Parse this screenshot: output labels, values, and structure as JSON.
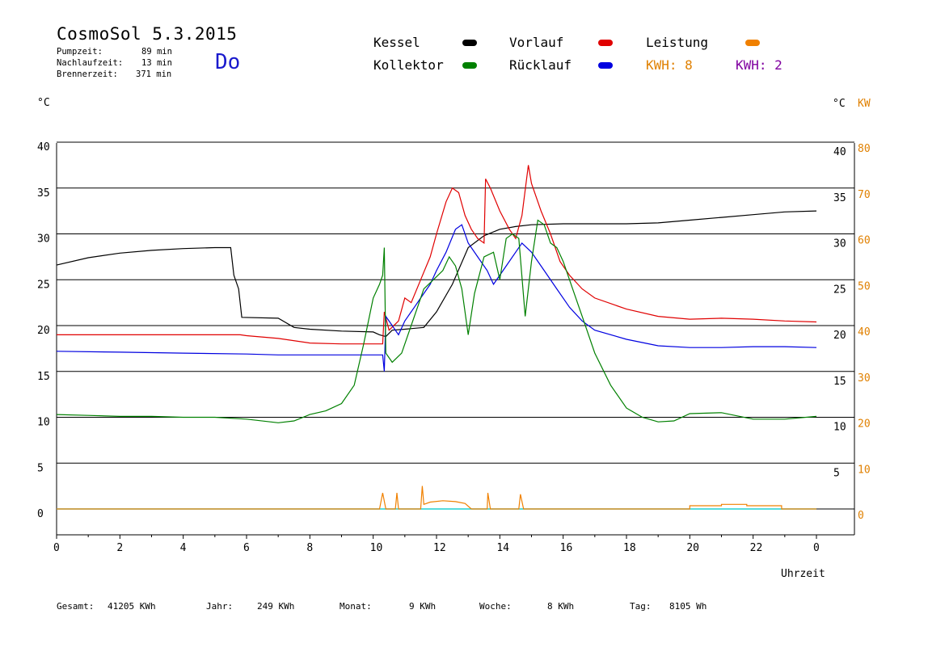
{
  "header": {
    "title": "CosmoSol 5.3.2015",
    "day": "Do",
    "stats": [
      {
        "label": "Pumpzeit:",
        "value": "89 min"
      },
      {
        "label": "Nachlaufzeit:",
        "value": "13 min"
      },
      {
        "label": "Brennerzeit:",
        "value": "371 min"
      }
    ]
  },
  "legend": {
    "items": [
      {
        "label": "Kessel",
        "color": "#000000"
      },
      {
        "label": "Vorlauf",
        "color": "#e00000"
      },
      {
        "label": "Leistung",
        "color": "#f08000"
      },
      {
        "label": "Kollektor",
        "color": "#008000"
      },
      {
        "label": "Rücklauf",
        "color": "#0000e0"
      }
    ],
    "kwh_orange": "KWH: 8",
    "kwh_purple": "KWH: 2",
    "kwh_orange_color": "#e08000",
    "kwh_purple_color": "#8000a0"
  },
  "units": {
    "left": "°C",
    "right_c": "°C",
    "right_kw": "KW"
  },
  "chart_data": {
    "type": "line",
    "xlabel": "Uhrzeit",
    "xlim": [
      0,
      24
    ],
    "x_tick_labels": [
      "0",
      "2",
      "4",
      "6",
      "8",
      "10",
      "12",
      "14",
      "16",
      "18",
      "20",
      "22",
      "0"
    ],
    "ylim_celsius": [
      -3,
      42
    ],
    "y_ticks_left": [
      "0",
      "5",
      "10",
      "15",
      "20",
      "25",
      "30",
      "35",
      "40"
    ],
    "y_ticks_right": [
      "5",
      "10",
      "15",
      "20",
      "25",
      "30",
      "35",
      "40"
    ],
    "y_ticks_kw": [
      "0",
      "10",
      "20",
      "30",
      "40",
      "50",
      "60",
      "70",
      "80"
    ],
    "grid": "horizontal",
    "series": [
      {
        "name": "Kessel",
        "color": "#000000",
        "points": [
          [
            0,
            26.6
          ],
          [
            1,
            27.4
          ],
          [
            2,
            27.9
          ],
          [
            3,
            28.2
          ],
          [
            4,
            28.4
          ],
          [
            5,
            28.5
          ],
          [
            5.5,
            28.5
          ],
          [
            5.6,
            25.5
          ],
          [
            5.75,
            24
          ],
          [
            5.85,
            20.9
          ],
          [
            7,
            20.8
          ],
          [
            7.5,
            19.8
          ],
          [
            8,
            19.6
          ],
          [
            9,
            19.4
          ],
          [
            10,
            19.3
          ],
          [
            10.2,
            19.0
          ],
          [
            10.4,
            18.8
          ],
          [
            10.6,
            19.5
          ],
          [
            11,
            19.6
          ],
          [
            11.6,
            19.8
          ],
          [
            12,
            21.5
          ],
          [
            12.5,
            24.5
          ],
          [
            13,
            28.5
          ],
          [
            13.5,
            29.8
          ],
          [
            14,
            30.5
          ],
          [
            14.5,
            30.8
          ],
          [
            15,
            31.0
          ],
          [
            16,
            31.1
          ],
          [
            18,
            31.1
          ],
          [
            19,
            31.2
          ],
          [
            20,
            31.5
          ],
          [
            21,
            31.8
          ],
          [
            22,
            32.1
          ],
          [
            23,
            32.4
          ],
          [
            24,
            32.5
          ]
        ]
      },
      {
        "name": "Vorlauf",
        "color": "#e00000",
        "points": [
          [
            0,
            19.0
          ],
          [
            5.8,
            19.0
          ],
          [
            6,
            18.9
          ],
          [
            7,
            18.6
          ],
          [
            8,
            18.1
          ],
          [
            9,
            18.0
          ],
          [
            10.3,
            18.0
          ],
          [
            10.35,
            21.5
          ],
          [
            10.5,
            19.5
          ],
          [
            10.8,
            20.5
          ],
          [
            11.0,
            23.0
          ],
          [
            11.2,
            22.5
          ],
          [
            11.5,
            25.0
          ],
          [
            11.8,
            27.5
          ],
          [
            12.0,
            30.0
          ],
          [
            12.3,
            33.5
          ],
          [
            12.5,
            35.0
          ],
          [
            12.7,
            34.5
          ],
          [
            12.9,
            32.0
          ],
          [
            13.1,
            30.5
          ],
          [
            13.3,
            29.5
          ],
          [
            13.5,
            29.0
          ],
          [
            13.55,
            36.0
          ],
          [
            13.7,
            35.0
          ],
          [
            14.0,
            32.5
          ],
          [
            14.3,
            30.5
          ],
          [
            14.5,
            29.5
          ],
          [
            14.7,
            32.0
          ],
          [
            14.9,
            37.5
          ],
          [
            15.0,
            35.5
          ],
          [
            15.3,
            32.5
          ],
          [
            15.6,
            30.0
          ],
          [
            15.9,
            27.0
          ],
          [
            16.2,
            25.5
          ],
          [
            16.6,
            24.0
          ],
          [
            17,
            23.0
          ],
          [
            18,
            21.8
          ],
          [
            19,
            21.0
          ],
          [
            20,
            20.7
          ],
          [
            21,
            20.8
          ],
          [
            22,
            20.7
          ],
          [
            23,
            20.5
          ],
          [
            24,
            20.4
          ]
        ]
      },
      {
        "name": "Rücklauf",
        "color": "#0000e0",
        "points": [
          [
            0,
            17.2
          ],
          [
            2,
            17.1
          ],
          [
            4,
            17.0
          ],
          [
            6,
            16.9
          ],
          [
            7,
            16.8
          ],
          [
            8,
            16.8
          ],
          [
            10.3,
            16.8
          ],
          [
            10.35,
            15.0
          ],
          [
            10.4,
            21.0
          ],
          [
            10.6,
            20.0
          ],
          [
            10.8,
            19.0
          ],
          [
            11.0,
            20.5
          ],
          [
            11.3,
            22.0
          ],
          [
            11.5,
            23.0
          ],
          [
            11.8,
            24.5
          ],
          [
            12.0,
            26.0
          ],
          [
            12.3,
            28.0
          ],
          [
            12.6,
            30.5
          ],
          [
            12.8,
            31.0
          ],
          [
            13.0,
            29.0
          ],
          [
            13.3,
            27.5
          ],
          [
            13.6,
            26.0
          ],
          [
            13.8,
            24.5
          ],
          [
            14.1,
            26.0
          ],
          [
            14.5,
            28.0
          ],
          [
            14.7,
            29.0
          ],
          [
            15.0,
            28.0
          ],
          [
            15.4,
            26.0
          ],
          [
            15.8,
            24.0
          ],
          [
            16.2,
            22.0
          ],
          [
            16.6,
            20.5
          ],
          [
            17,
            19.5
          ],
          [
            18,
            18.5
          ],
          [
            19,
            17.8
          ],
          [
            20,
            17.6
          ],
          [
            21,
            17.6
          ],
          [
            22,
            17.7
          ],
          [
            23,
            17.7
          ],
          [
            24,
            17.6
          ]
        ]
      },
      {
        "name": "Kollektor",
        "color": "#008000",
        "points": [
          [
            0,
            10.3
          ],
          [
            1,
            10.2
          ],
          [
            2,
            10.1
          ],
          [
            3,
            10.1
          ],
          [
            4,
            10.0
          ],
          [
            5,
            10.0
          ],
          [
            6,
            9.8
          ],
          [
            7,
            9.4
          ],
          [
            7.5,
            9.6
          ],
          [
            8,
            10.3
          ],
          [
            8.5,
            10.7
          ],
          [
            9,
            11.5
          ],
          [
            9.4,
            13.5
          ],
          [
            9.7,
            18.0
          ],
          [
            10.0,
            23.0
          ],
          [
            10.2,
            24.5
          ],
          [
            10.3,
            25.5
          ],
          [
            10.35,
            28.5
          ],
          [
            10.4,
            17.0
          ],
          [
            10.6,
            16.0
          ],
          [
            10.9,
            17.0
          ],
          [
            11.1,
            19.0
          ],
          [
            11.4,
            22.0
          ],
          [
            11.6,
            24.0
          ],
          [
            11.9,
            25.0
          ],
          [
            12.2,
            26.0
          ],
          [
            12.4,
            27.5
          ],
          [
            12.6,
            26.5
          ],
          [
            12.8,
            24.0
          ],
          [
            13.0,
            19.0
          ],
          [
            13.2,
            23.5
          ],
          [
            13.5,
            27.5
          ],
          [
            13.8,
            28.0
          ],
          [
            14.0,
            25.0
          ],
          [
            14.2,
            29.5
          ],
          [
            14.4,
            30.0
          ],
          [
            14.6,
            29.5
          ],
          [
            14.8,
            21.0
          ],
          [
            15.0,
            27.0
          ],
          [
            15.2,
            31.5
          ],
          [
            15.4,
            31.0
          ],
          [
            15.6,
            29.0
          ],
          [
            15.8,
            28.5
          ],
          [
            16.0,
            27.0
          ],
          [
            16.3,
            24.0
          ],
          [
            16.6,
            21.0
          ],
          [
            17.0,
            17.0
          ],
          [
            17.5,
            13.5
          ],
          [
            18.0,
            11.0
          ],
          [
            18.5,
            10.0
          ],
          [
            19.0,
            9.5
          ],
          [
            19.5,
            9.6
          ],
          [
            20,
            10.4
          ],
          [
            21,
            10.5
          ],
          [
            22,
            9.8
          ],
          [
            23,
            9.8
          ],
          [
            24,
            10.1
          ]
        ]
      },
      {
        "name": "Leistung",
        "color": "#f08000",
        "unit": "KW",
        "points": [
          [
            0,
            0
          ],
          [
            10.2,
            0
          ],
          [
            10.3,
            3.5
          ],
          [
            10.4,
            0
          ],
          [
            10.7,
            0
          ],
          [
            10.75,
            3.5
          ],
          [
            10.8,
            0
          ],
          [
            11.5,
            0
          ],
          [
            11.55,
            5.0
          ],
          [
            11.6,
            1.0
          ],
          [
            11.8,
            1.5
          ],
          [
            12.2,
            1.8
          ],
          [
            12.6,
            1.6
          ],
          [
            12.9,
            1.2
          ],
          [
            13.1,
            0
          ],
          [
            13.6,
            0
          ],
          [
            13.62,
            3.5
          ],
          [
            13.7,
            0
          ],
          [
            14.6,
            0
          ],
          [
            14.65,
            3.2
          ],
          [
            14.75,
            0
          ],
          [
            20.0,
            0
          ],
          [
            20.0,
            0.7
          ],
          [
            21.0,
            0.7
          ],
          [
            21.0,
            1.0
          ],
          [
            21.8,
            1.0
          ],
          [
            21.8,
            0.7
          ],
          [
            22.9,
            0.7
          ],
          [
            22.9,
            0
          ],
          [
            24,
            0
          ]
        ]
      }
    ]
  },
  "footer": [
    {
      "label": "Gesamt:",
      "value": "41205 KWh"
    },
    {
      "label": "Jahr:",
      "value": "249 KWh"
    },
    {
      "label": "Monat:",
      "value": "9 KWh"
    },
    {
      "label": "Woche:",
      "value": "8 KWh"
    },
    {
      "label": "Tag:",
      "value": "8105 Wh"
    }
  ]
}
